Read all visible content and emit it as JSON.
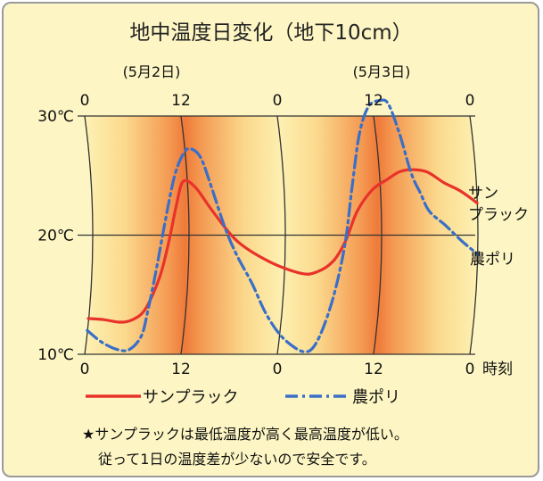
{
  "chart_data": {
    "type": "line",
    "title": "地中温度日変化（地下10cm）",
    "date_labels": [
      "(5月2日)",
      "(5月3日)"
    ],
    "x_ticks_top": [
      "0",
      "12",
      "0",
      "12",
      "0"
    ],
    "x_ticks_bottom": [
      "0",
      "12",
      "0",
      "12",
      "0"
    ],
    "x_unit": "時刻",
    "y_ticks": [
      "10℃",
      "20℃",
      "30℃"
    ],
    "ylim": [
      10,
      30
    ],
    "xlim": [
      0,
      48
    ],
    "grid": true,
    "series": [
      {
        "name": "サンプラック",
        "label_lines": [
          "サン",
          "プラック"
        ],
        "color": "#e8322a",
        "dash": "solid",
        "x": [
          0,
          2,
          4,
          5.5,
          7,
          8.5,
          9.5,
          10.5,
          11.5,
          13,
          15,
          18,
          22,
          26,
          28,
          30,
          31.5,
          33,
          35,
          37,
          38.5,
          40,
          42,
          44,
          46,
          48
        ],
        "y": [
          13,
          12.9,
          12.7,
          12.9,
          13.8,
          16.5,
          19.5,
          22.5,
          24.5,
          24,
          22,
          19.5,
          17.8,
          16.8,
          16.9,
          17.8,
          19.5,
          22,
          23.8,
          24.7,
          25.3,
          25.5,
          25.3,
          24.4,
          23.7,
          22.7
        ]
      },
      {
        "name": "農ポリ",
        "color": "#3a6fc8",
        "dash": "dashdot",
        "x": [
          0,
          2,
          4,
          5.5,
          6.8,
          7.3,
          8,
          9,
          10.5,
          12,
          13,
          14,
          15,
          16.5,
          18,
          20,
          22,
          24,
          26,
          27.5,
          28.5,
          29.5,
          30.5,
          31.5,
          32.5,
          34,
          35.5,
          37,
          38,
          39,
          40,
          41,
          42,
          44,
          46,
          48
        ],
        "y": [
          12,
          11,
          10.4,
          10.4,
          11.5,
          13.5,
          17,
          21,
          25,
          27,
          27.2,
          26.4,
          24,
          20.6,
          18.3,
          16,
          13.5,
          11.7,
          10.6,
          10.2,
          10.7,
          12.5,
          15.5,
          19.5,
          24,
          28.5,
          30.8,
          31.3,
          31,
          28.5,
          25.2,
          23.5,
          22,
          20.8,
          19.5,
          18.4
        ]
      }
    ],
    "legend": [
      {
        "name": "サンプラック",
        "color": "#e8322a",
        "dash": "solid"
      },
      {
        "name": "農ポリ",
        "color": "#3a6fc8",
        "dash": "dashdot"
      }
    ],
    "legend_placement": "bottom",
    "note_lines": [
      "★サンプラックは最低温度が高く最高温度が低い。",
      "従って1日の温度差が少ないので安全です。"
    ],
    "colors": {
      "background": "#fdf6c4",
      "band_light": "#fdf2b4",
      "band_mid": "#f8b061",
      "band_peak": "#ef7a3a"
    }
  }
}
